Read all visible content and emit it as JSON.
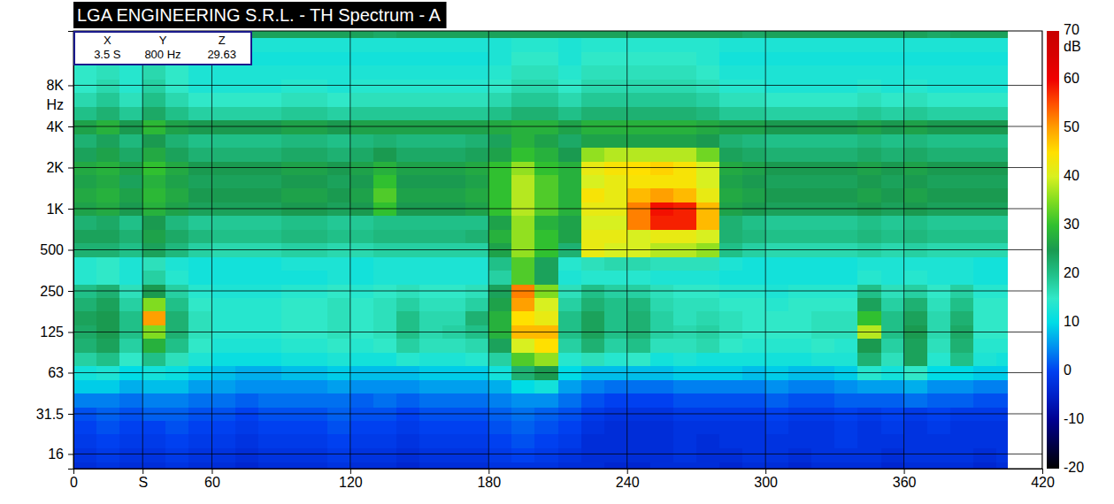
{
  "chart_data": {
    "type": "heatmap",
    "title": "LGA ENGINEERING S.R.L. - TH Spectrum - A",
    "y_label": "Hz",
    "log": "y",
    "grid": true,
    "xlim": [
      0,
      420
    ],
    "xticks": [
      0,
      {
        "value": 30,
        "label": "S"
      },
      60,
      120,
      180,
      240,
      300,
      360,
      420
    ],
    "ylim": [
      12.5,
      20000
    ],
    "yticks": [
      16,
      31.5,
      63,
      125,
      250,
      500,
      {
        "value": 1000,
        "label": "1K"
      },
      {
        "value": 2000,
        "label": "2K"
      },
      {
        "value": 4000,
        "label": "4K"
      },
      {
        "value": 8000,
        "label": "8K"
      }
    ],
    "x_edges": [
      0,
      10,
      20,
      30,
      40,
      50,
      60,
      70,
      80,
      90,
      100,
      110,
      120,
      130,
      140,
      150,
      160,
      170,
      180,
      190,
      200,
      210,
      220,
      230,
      240,
      250,
      260,
      270,
      280,
      290,
      300,
      310,
      320,
      330,
      340,
      350,
      360,
      370,
      380,
      390,
      400,
      405
    ],
    "y_edges": [
      11.2,
      14.1,
      17.8,
      22.4,
      28.2,
      35.5,
      44.7,
      56.2,
      70.8,
      89.1,
      112,
      141,
      178,
      224,
      282,
      355,
      447,
      562,
      708,
      891,
      1122,
      1413,
      1778,
      2239,
      2818,
      3548,
      4467,
      5623,
      7079,
      8913,
      11220,
      14125,
      17783,
      22387
    ],
    "cells": [
      [
        -3,
        -2,
        -3,
        -3,
        -2,
        -3,
        -3,
        -4,
        -3,
        -3,
        -3,
        -2,
        -3,
        -3,
        -4,
        -3,
        -3,
        -3,
        -2,
        -2,
        -2,
        -3,
        -3,
        -4,
        -4,
        -3,
        -3,
        -3,
        -4,
        -3,
        -3,
        -4,
        -3,
        -3,
        -3,
        -4,
        -3,
        -3,
        -3,
        -4,
        -3
      ],
      [
        -2,
        -1,
        -2,
        -2,
        -1,
        -2,
        -2,
        -3,
        -2,
        -2,
        -2,
        -1,
        -2,
        -2,
        -3,
        -2,
        -2,
        -2,
        -1,
        0,
        -1,
        -2,
        -3,
        -3,
        -3,
        -3,
        -2,
        -3,
        -3,
        -2,
        -2,
        -3,
        -2,
        -2,
        -2,
        -3,
        -2,
        -2,
        -2,
        -3,
        -2
      ],
      [
        -1,
        0,
        -1,
        -1,
        0,
        -1,
        -1,
        -2,
        -1,
        -1,
        -1,
        0,
        -1,
        -1,
        -2,
        -1,
        -1,
        -1,
        0,
        1,
        0,
        -1,
        -3,
        -3,
        -3,
        -3,
        -2,
        -3,
        -2,
        -2,
        -2,
        -2,
        -2,
        -1,
        -2,
        -2,
        -2,
        -2,
        -2,
        -2,
        -2
      ],
      [
        0,
        1,
        0,
        0,
        1,
        0,
        0,
        -1,
        0,
        0,
        0,
        1,
        0,
        0,
        -1,
        0,
        0,
        0,
        1,
        2,
        1,
        0,
        -2,
        -3,
        -3,
        -3,
        -2,
        -2,
        -2,
        -2,
        -1,
        -2,
        -2,
        -1,
        -2,
        -1,
        -2,
        -1,
        -2,
        -2,
        -2
      ],
      [
        1,
        2,
        1,
        2,
        2,
        1,
        1,
        0,
        1,
        1,
        1,
        2,
        1,
        1,
        0,
        1,
        1,
        1,
        2,
        3,
        2,
        1,
        -1,
        -2,
        -2,
        -2,
        -1,
        -1,
        -1,
        -1,
        0,
        -1,
        -1,
        0,
        -1,
        0,
        -1,
        0,
        -1,
        -1,
        -1
      ],
      [
        4,
        4,
        3,
        4,
        4,
        3,
        3,
        2,
        3,
        3,
        3,
        3,
        2,
        3,
        2,
        3,
        3,
        3,
        4,
        5,
        5,
        3,
        1,
        0,
        0,
        0,
        1,
        1,
        1,
        1,
        2,
        1,
        1,
        2,
        2,
        2,
        3,
        2,
        2,
        1,
        1
      ],
      [
        9,
        9,
        7,
        8,
        8,
        6,
        6,
        5,
        5,
        5,
        5,
        6,
        5,
        5,
        5,
        6,
        6,
        6,
        7,
        10,
        12,
        6,
        4,
        3,
        3,
        3,
        4,
        4,
        4,
        4,
        5,
        4,
        4,
        5,
        6,
        6,
        7,
        5,
        5,
        4,
        4
      ],
      [
        12,
        13,
        10,
        12,
        11,
        9,
        8,
        7,
        7,
        8,
        8,
        9,
        8,
        8,
        8,
        9,
        9,
        9,
        12,
        22,
        25,
        10,
        8,
        8,
        8,
        8,
        9,
        9,
        9,
        8,
        9,
        8,
        8,
        9,
        14,
        12,
        15,
        10,
        10,
        9,
        9
      ],
      [
        18,
        20,
        15,
        20,
        16,
        13,
        11,
        11,
        11,
        12,
        12,
        13,
        12,
        12,
        14,
        13,
        13,
        14,
        18,
        32,
        36,
        14,
        16,
        14,
        15,
        12,
        13,
        12,
        12,
        12,
        12,
        12,
        13,
        13,
        22,
        16,
        24,
        14,
        20,
        13,
        12
      ],
      [
        22,
        24,
        18,
        28,
        20,
        15,
        13,
        13,
        13,
        14,
        14,
        15,
        14,
        15,
        18,
        16,
        16,
        17,
        24,
        40,
        45,
        18,
        22,
        18,
        20,
        16,
        16,
        17,
        15,
        14,
        14,
        14,
        15,
        14,
        25,
        18,
        24,
        16,
        22,
        14,
        14
      ],
      [
        23,
        25,
        20,
        35,
        22,
        16,
        14,
        14,
        14,
        15,
        15,
        16,
        15,
        16,
        20,
        17,
        18,
        20,
        28,
        48,
        48,
        20,
        24,
        20,
        22,
        18,
        17,
        18,
        16,
        15,
        15,
        15,
        16,
        16,
        38,
        20,
        25,
        17,
        23,
        15,
        15
      ],
      [
        24,
        25,
        20,
        50,
        22,
        16,
        14,
        14,
        14,
        15,
        15,
        16,
        15,
        16,
        20,
        17,
        17,
        22,
        28,
        45,
        42,
        20,
        24,
        20,
        22,
        18,
        16,
        17,
        16,
        15,
        15,
        15,
        16,
        16,
        30,
        20,
        24,
        17,
        22,
        15,
        15
      ],
      [
        22,
        24,
        18,
        35,
        20,
        15,
        14,
        14,
        14,
        15,
        15,
        16,
        15,
        16,
        18,
        16,
        16,
        18,
        26,
        50,
        40,
        18,
        22,
        20,
        21,
        17,
        16,
        16,
        15,
        15,
        14,
        15,
        15,
        15,
        24,
        18,
        22,
        16,
        20,
        15,
        15
      ],
      [
        20,
        22,
        16,
        25,
        18,
        14,
        13,
        13,
        13,
        14,
        14,
        15,
        14,
        15,
        16,
        15,
        15,
        16,
        24,
        52,
        35,
        16,
        20,
        18,
        18,
        16,
        15,
        15,
        14,
        14,
        13,
        14,
        14,
        14,
        20,
        16,
        18,
        15,
        18,
        14,
        14
      ],
      [
        14,
        15,
        13,
        18,
        14,
        12,
        12,
        12,
        12,
        12,
        12,
        13,
        12,
        13,
        13,
        13,
        13,
        13,
        18,
        32,
        24,
        13,
        14,
        14,
        14,
        13,
        13,
        13,
        12,
        12,
        12,
        12,
        12,
        12,
        14,
        13,
        14,
        13,
        13,
        12,
        12
      ],
      [
        14,
        15,
        13,
        16,
        13,
        12,
        12,
        12,
        12,
        13,
        13,
        13,
        12,
        13,
        13,
        13,
        13,
        13,
        20,
        32,
        24,
        14,
        16,
        17,
        17,
        16,
        16,
        16,
        13,
        12,
        12,
        12,
        12,
        12,
        13,
        13,
        13,
        13,
        13,
        12,
        12
      ],
      [
        22,
        22,
        20,
        24,
        21,
        18,
        17,
        17,
        17,
        18,
        18,
        17,
        17,
        18,
        18,
        18,
        18,
        18,
        26,
        36,
        30,
        22,
        42,
        40,
        40,
        38,
        38,
        36,
        20,
        18,
        17,
        17,
        17,
        17,
        18,
        17,
        18,
        17,
        17,
        17,
        17
      ],
      [
        24,
        24,
        22,
        26,
        23,
        21,
        20,
        20,
        20,
        21,
        21,
        20,
        20,
        21,
        21,
        21,
        21,
        22,
        28,
        36,
        30,
        26,
        42,
        42,
        40,
        42,
        42,
        40,
        22,
        21,
        20,
        20,
        20,
        20,
        21,
        20,
        21,
        20,
        20,
        20,
        20
      ],
      [
        22,
        23,
        20,
        25,
        21,
        19,
        19,
        19,
        19,
        20,
        20,
        19,
        19,
        20,
        20,
        20,
        20,
        20,
        26,
        36,
        28,
        26,
        40,
        40,
        52,
        58,
        58,
        48,
        22,
        20,
        19,
        19,
        19,
        19,
        20,
        19,
        20,
        19,
        19,
        19,
        19
      ],
      [
        26,
        27,
        25,
        28,
        26,
        24,
        24,
        24,
        24,
        25,
        25,
        24,
        25,
        30,
        25,
        25,
        25,
        26,
        30,
        38,
        32,
        28,
        42,
        42,
        52,
        59,
        58,
        48,
        26,
        25,
        24,
        24,
        24,
        24,
        25,
        24,
        25,
        24,
        24,
        24,
        24
      ],
      [
        27,
        28,
        26,
        29,
        27,
        25,
        25,
        25,
        25,
        26,
        26,
        25,
        26,
        32,
        26,
        26,
        26,
        27,
        30,
        38,
        32,
        28,
        44,
        42,
        48,
        50,
        48,
        42,
        27,
        26,
        25,
        25,
        25,
        25,
        26,
        25,
        26,
        25,
        25,
        25,
        25
      ],
      [
        26,
        27,
        24,
        28,
        26,
        24,
        24,
        24,
        24,
        25,
        25,
        24,
        25,
        30,
        25,
        25,
        25,
        26,
        30,
        38,
        32,
        28,
        40,
        42,
        44,
        44,
        44,
        40,
        26,
        25,
        24,
        24,
        24,
        24,
        25,
        24,
        25,
        24,
        24,
        24,
        24
      ],
      [
        27,
        28,
        26,
        30,
        27,
        25,
        25,
        25,
        25,
        26,
        26,
        25,
        26,
        28,
        26,
        26,
        26,
        27,
        30,
        36,
        30,
        28,
        42,
        44,
        45,
        46,
        44,
        40,
        27,
        26,
        25,
        25,
        25,
        25,
        26,
        25,
        26,
        25,
        25,
        25,
        25
      ],
      [
        24,
        26,
        23,
        27,
        24,
        22,
        22,
        22,
        22,
        23,
        23,
        22,
        23,
        25,
        23,
        23,
        23,
        24,
        26,
        30,
        28,
        25,
        36,
        38,
        38,
        38,
        38,
        34,
        24,
        23,
        22,
        22,
        22,
        22,
        23,
        22,
        23,
        22,
        22,
        22,
        22
      ],
      [
        22,
        24,
        21,
        25,
        22,
        20,
        20,
        20,
        20,
        21,
        21,
        20,
        21,
        22,
        21,
        21,
        21,
        22,
        24,
        28,
        26,
        23,
        26,
        26,
        26,
        26,
        26,
        25,
        22,
        21,
        20,
        20,
        20,
        20,
        21,
        20,
        21,
        20,
        20,
        20,
        20
      ],
      [
        26,
        28,
        25,
        29,
        26,
        25,
        25,
        25,
        25,
        26,
        26,
        25,
        26,
        26,
        26,
        26,
        26,
        26,
        27,
        28,
        28,
        26,
        28,
        28,
        28,
        28,
        28,
        27,
        26,
        26,
        25,
        25,
        25,
        25,
        26,
        25,
        26,
        25,
        25,
        25,
        25
      ],
      [
        20,
        22,
        19,
        23,
        20,
        18,
        18,
        18,
        18,
        19,
        19,
        18,
        19,
        19,
        19,
        19,
        19,
        19,
        20,
        22,
        22,
        20,
        22,
        22,
        22,
        22,
        22,
        21,
        19,
        19,
        18,
        18,
        18,
        18,
        19,
        18,
        19,
        18,
        18,
        18,
        18
      ],
      [
        17,
        19,
        16,
        20,
        17,
        15,
        15,
        15,
        15,
        16,
        16,
        15,
        16,
        16,
        16,
        16,
        16,
        16,
        17,
        19,
        19,
        17,
        19,
        19,
        19,
        19,
        19,
        18,
        16,
        16,
        15,
        15,
        15,
        15,
        16,
        15,
        16,
        15,
        15,
        15,
        15
      ],
      [
        15,
        17,
        14,
        18,
        15,
        13,
        13,
        13,
        13,
        14,
        14,
        13,
        14,
        14,
        14,
        14,
        14,
        14,
        15,
        17,
        17,
        15,
        17,
        17,
        17,
        17,
        17,
        16,
        14,
        14,
        13,
        13,
        13,
        13,
        14,
        13,
        14,
        13,
        13,
        13,
        13
      ],
      [
        15,
        16,
        14,
        17,
        15,
        13,
        13,
        13,
        13,
        13,
        13,
        13,
        13,
        13,
        13,
        13,
        13,
        13,
        14,
        16,
        16,
        14,
        16,
        16,
        16,
        16,
        16,
        15,
        13,
        13,
        13,
        13,
        13,
        13,
        13,
        13,
        13,
        13,
        13,
        13,
        13
      ],
      [
        14,
        15,
        13,
        16,
        14,
        12,
        12,
        12,
        12,
        12,
        12,
        12,
        12,
        12,
        12,
        12,
        12,
        12,
        13,
        15,
        15,
        13,
        15,
        15,
        15,
        15,
        15,
        14,
        12,
        12,
        12,
        12,
        12,
        12,
        12,
        12,
        12,
        12,
        12,
        12,
        12
      ],
      [
        14,
        15,
        13,
        15,
        14,
        13,
        13,
        13,
        13,
        13,
        13,
        13,
        13,
        13,
        13,
        13,
        13,
        13,
        13,
        14,
        14,
        13,
        14,
        14,
        14,
        14,
        14,
        14,
        13,
        13,
        13,
        13,
        13,
        13,
        13,
        13,
        13,
        13,
        13,
        13,
        13
      ],
      [
        23,
        24,
        24,
        24,
        24,
        23,
        24,
        24,
        24,
        24,
        24,
        24,
        24,
        23,
        24,
        24,
        24,
        24,
        24,
        24,
        24,
        24,
        24,
        24,
        24,
        24,
        24,
        24,
        24,
        23,
        24,
        24,
        24,
        24,
        24,
        24,
        24,
        23,
        24,
        24,
        24
      ]
    ],
    "colorbar": {
      "range": [
        -20,
        70
      ],
      "ticks": [
        -20,
        -10,
        0,
        10,
        20,
        30,
        40,
        50,
        60,
        70
      ],
      "label": "dB"
    },
    "cursor": {
      "labels": [
        "X",
        "Y",
        "Z"
      ],
      "values": [
        "3.5 S",
        "800 Hz",
        "29.63"
      ]
    }
  }
}
